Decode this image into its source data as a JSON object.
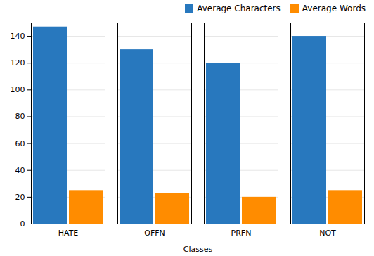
{
  "chart_data": {
    "type": "bar",
    "xlabel": "Classes",
    "categories": [
      "HATE",
      "OFFN",
      "PRFN",
      "NOT"
    ],
    "series": [
      {
        "name": "Average Characters",
        "color": "#2878BE",
        "values": [
          147,
          130,
          120,
          140
        ]
      },
      {
        "name": "Average Words",
        "color": "#FF8C00",
        "values": [
          25,
          23,
          20,
          25
        ]
      }
    ],
    "ylim": [
      0,
      150
    ],
    "yticks": [
      0,
      20,
      40,
      60,
      80,
      100,
      120,
      140
    ],
    "grid": true,
    "legend": "upper right"
  }
}
